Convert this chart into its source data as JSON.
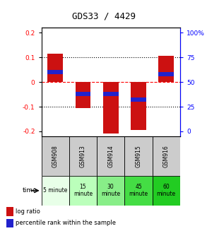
{
  "title": "GDS33 / 4429",
  "samples": [
    "GSM908",
    "GSM913",
    "GSM914",
    "GSM915",
    "GSM916"
  ],
  "time_labels": [
    "5 minute",
    "15\nminute",
    "30\nminute",
    "45\nminute",
    "60\nminute"
  ],
  "time_colors": [
    "#e8ffe8",
    "#bbffbb",
    "#88ee88",
    "#44dd44",
    "#22cc22"
  ],
  "log_ratios": [
    0.115,
    -0.105,
    -0.21,
    -0.195,
    0.105
  ],
  "percentile_ranks": [
    0.6,
    0.38,
    0.38,
    0.32,
    0.58
  ],
  "bar_color": "#cc1111",
  "percentile_color": "#2222cc",
  "ylim": [
    -0.22,
    0.22
  ],
  "yticks_left": [
    -0.2,
    -0.1,
    0.0,
    0.1,
    0.2
  ],
  "yticks_right_vals": [
    0,
    25,
    50,
    75,
    100
  ],
  "yticks_right_pos": [
    -0.2,
    -0.1,
    0.0,
    0.1,
    0.2
  ],
  "bar_width": 0.55,
  "percentile_bar_height": 0.018,
  "sample_row_color": "#cccccc",
  "legend_red_label": "log ratio",
  "legend_blue_label": "percentile rank within the sample"
}
